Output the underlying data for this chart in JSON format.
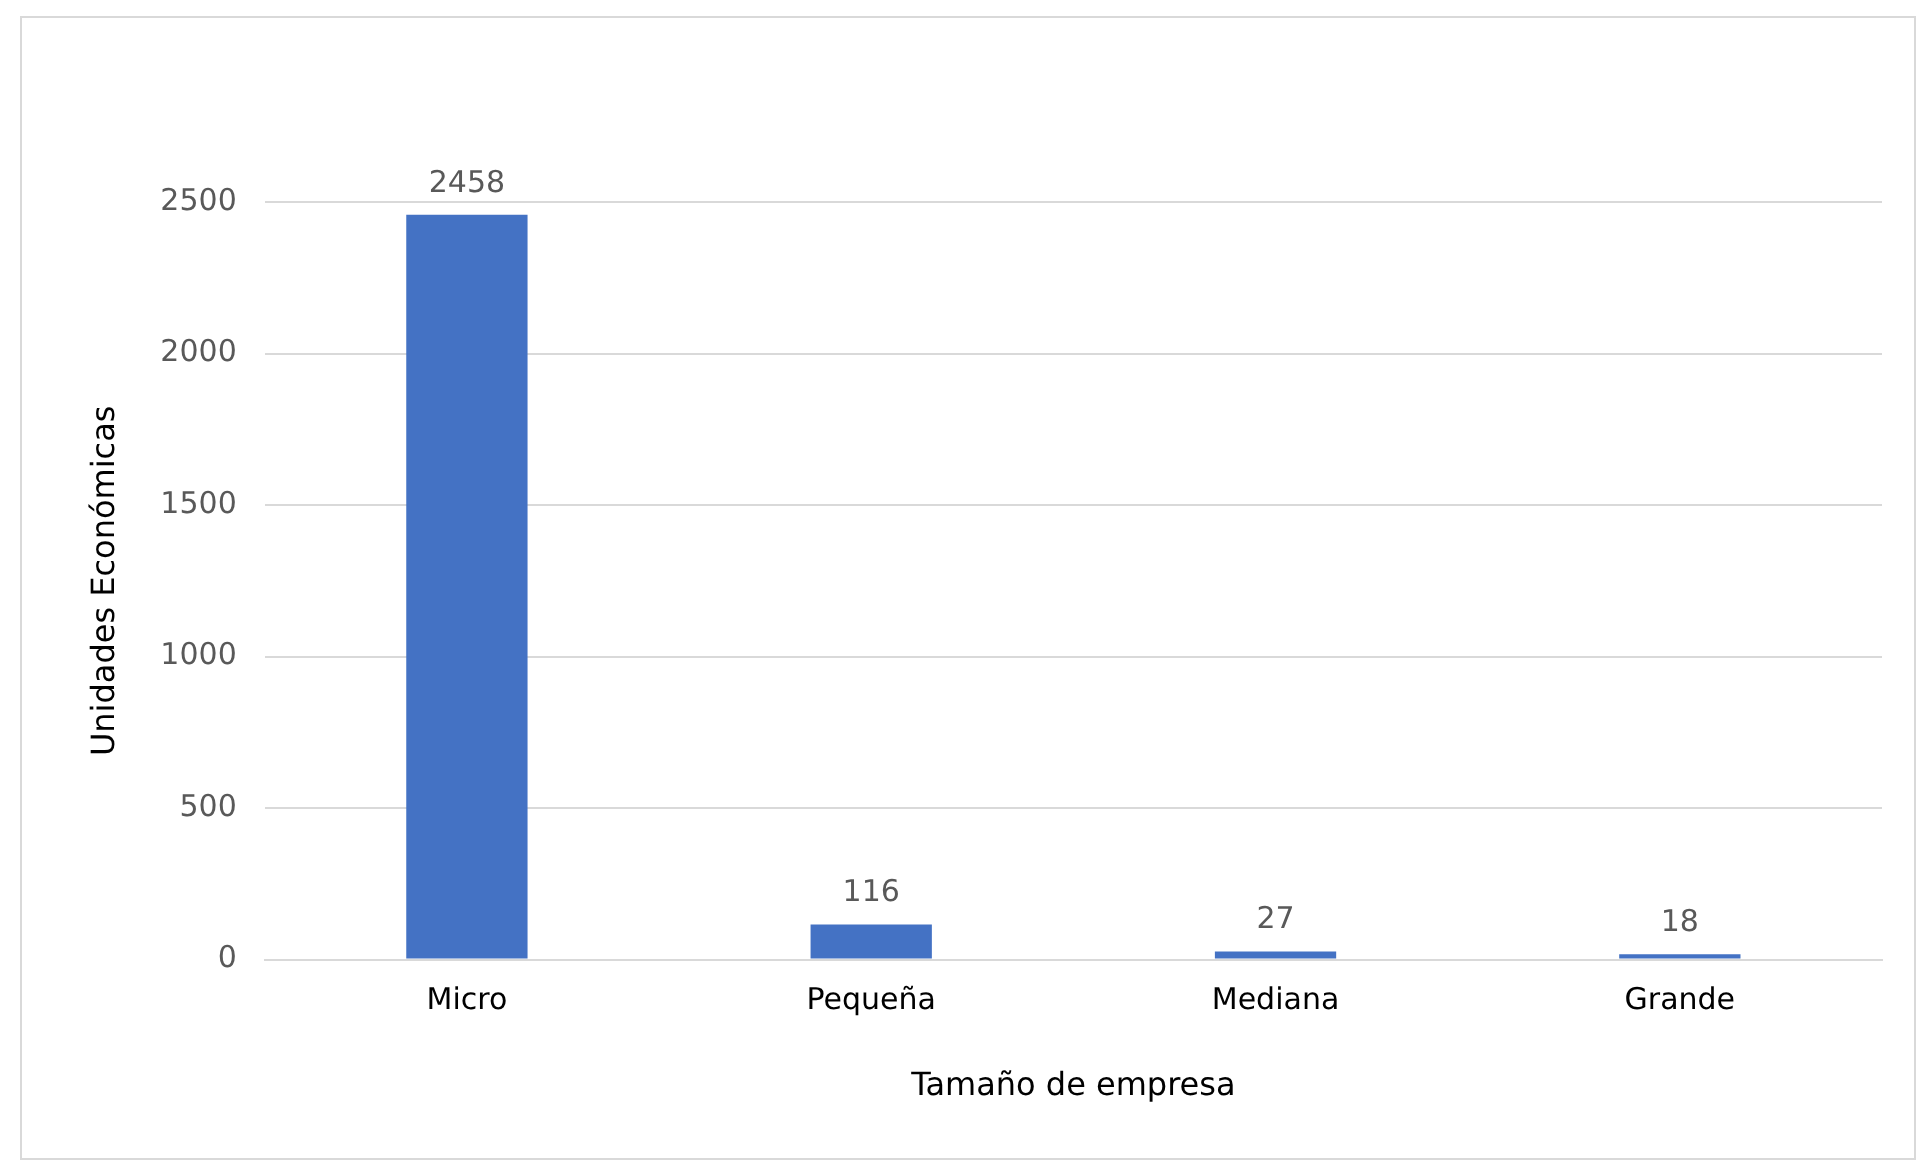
{
  "chart_data": {
    "type": "bar",
    "xlabel": "Tamaño de empresa",
    "ylabel": "Unidades Económicas",
    "categories": [
      "Micro",
      "Pequeña",
      "Mediana",
      "Grande"
    ],
    "values": [
      2458,
      116,
      27,
      18
    ],
    "color": "#4472c4",
    "ylim": [
      0,
      2500
    ],
    "yticks": [
      0,
      500,
      1000,
      1500,
      2000,
      2500
    ],
    "grid": "y",
    "data_labels": true
  }
}
